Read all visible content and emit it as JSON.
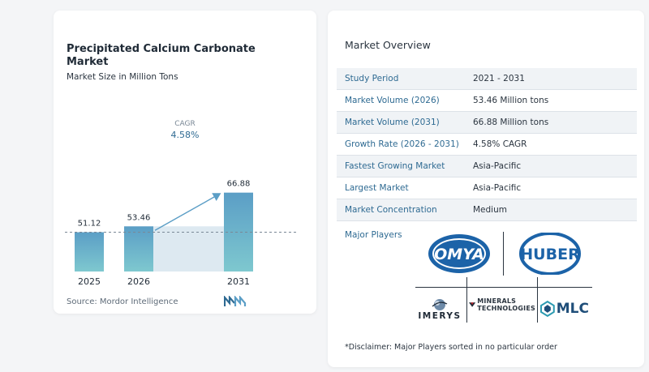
{
  "chart_data": {
    "type": "bar",
    "title": "Precipitated Calcium Carbonate Market",
    "subtitle": "Market Size in Million Tons",
    "categories": [
      "2025",
      "2026",
      "2031"
    ],
    "values": [
      51.12,
      53.46,
      66.88
    ],
    "value_labels": [
      "51.12",
      "53.46",
      "66.88"
    ],
    "cagr_label": "CAGR",
    "cagr_value": "4.58%",
    "source": "Source: Mordor Intelligence",
    "colors": {
      "bar_top": "#5b9ec6",
      "bar_bottom": "#7ec8cf",
      "projection_fill": "#dde9f1",
      "arrow": "#5b9ec6",
      "dashed_line": "#7a8896"
    }
  },
  "overview": {
    "title": "Market Overview",
    "rows": [
      {
        "label": "Study Period",
        "value": "2021 - 2031"
      },
      {
        "label": "Market Volume (2026)",
        "value": "53.46 Million tons"
      },
      {
        "label": "Market Volume (2031)",
        "value": "66.88 Million tons"
      },
      {
        "label": "Growth Rate (2026 - 2031)",
        "value": "4.58% CAGR"
      },
      {
        "label": "Fastest Growing Market",
        "value": "Asia-Pacific"
      },
      {
        "label": "Largest Market",
        "value": "Asia-Pacific"
      },
      {
        "label": "Market Concentration",
        "value": "Medium"
      }
    ],
    "players_label": "Major Players",
    "players": {
      "omya": "OMYA",
      "huber": "HUBER",
      "imerys": "IMERYS",
      "minerals_line1": "MINERALS",
      "minerals_line2": "TECHNOLOGIES",
      "mlc": "MLC"
    },
    "disclaimer": "*Disclaimer: Major Players sorted in no particular order"
  }
}
